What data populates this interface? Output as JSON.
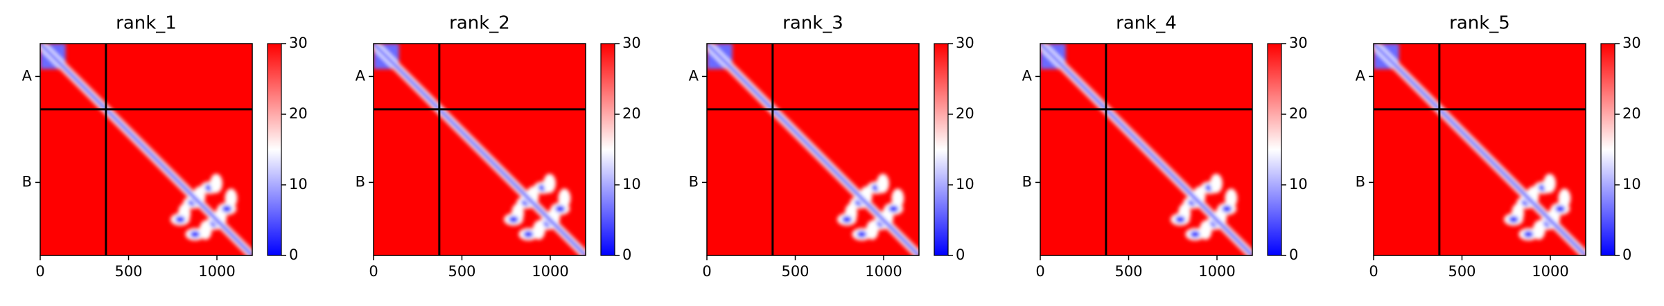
{
  "chart_data": [
    {
      "type": "heatmap",
      "title": "rank_1",
      "xlim": [
        0,
        1200
      ],
      "ylim": [
        0,
        1200
      ],
      "xticks": [
        0,
        500,
        1000
      ],
      "yticks": [
        {
          "value": 186,
          "label": "A"
        },
        {
          "value": 786,
          "label": "B"
        }
      ],
      "chain_boundary": 372,
      "colormap": "bwr",
      "clim": [
        0,
        30
      ],
      "cticks": [
        0,
        10,
        20,
        30
      ]
    },
    {
      "type": "heatmap",
      "title": "rank_2",
      "xlim": [
        0,
        1200
      ],
      "ylim": [
        0,
        1200
      ],
      "xticks": [
        0,
        500,
        1000
      ],
      "yticks": [
        {
          "value": 186,
          "label": "A"
        },
        {
          "value": 786,
          "label": "B"
        }
      ],
      "chain_boundary": 372,
      "colormap": "bwr",
      "clim": [
        0,
        30
      ],
      "cticks": [
        0,
        10,
        20,
        30
      ]
    },
    {
      "type": "heatmap",
      "title": "rank_3",
      "xlim": [
        0,
        1200
      ],
      "ylim": [
        0,
        1200
      ],
      "xticks": [
        0,
        500,
        1000
      ],
      "yticks": [
        {
          "value": 186,
          "label": "A"
        },
        {
          "value": 786,
          "label": "B"
        }
      ],
      "chain_boundary": 372,
      "colormap": "bwr",
      "clim": [
        0,
        30
      ],
      "cticks": [
        0,
        10,
        20,
        30
      ]
    },
    {
      "type": "heatmap",
      "title": "rank_4",
      "xlim": [
        0,
        1200
      ],
      "ylim": [
        0,
        1200
      ],
      "xticks": [
        0,
        500,
        1000
      ],
      "yticks": [
        {
          "value": 186,
          "label": "A"
        },
        {
          "value": 786,
          "label": "B"
        }
      ],
      "chain_boundary": 372,
      "colormap": "bwr",
      "clim": [
        0,
        30
      ],
      "cticks": [
        0,
        10,
        20,
        30
      ]
    },
    {
      "type": "heatmap",
      "title": "rank_5",
      "xlim": [
        0,
        1200
      ],
      "ylim": [
        0,
        1200
      ],
      "xticks": [
        0,
        500,
        1000
      ],
      "yticks": [
        {
          "value": 186,
          "label": "A"
        },
        {
          "value": 786,
          "label": "B"
        }
      ],
      "chain_boundary": 372,
      "colormap": "bwr",
      "clim": [
        0,
        30
      ],
      "cticks": [
        0,
        10,
        20,
        30
      ]
    }
  ]
}
